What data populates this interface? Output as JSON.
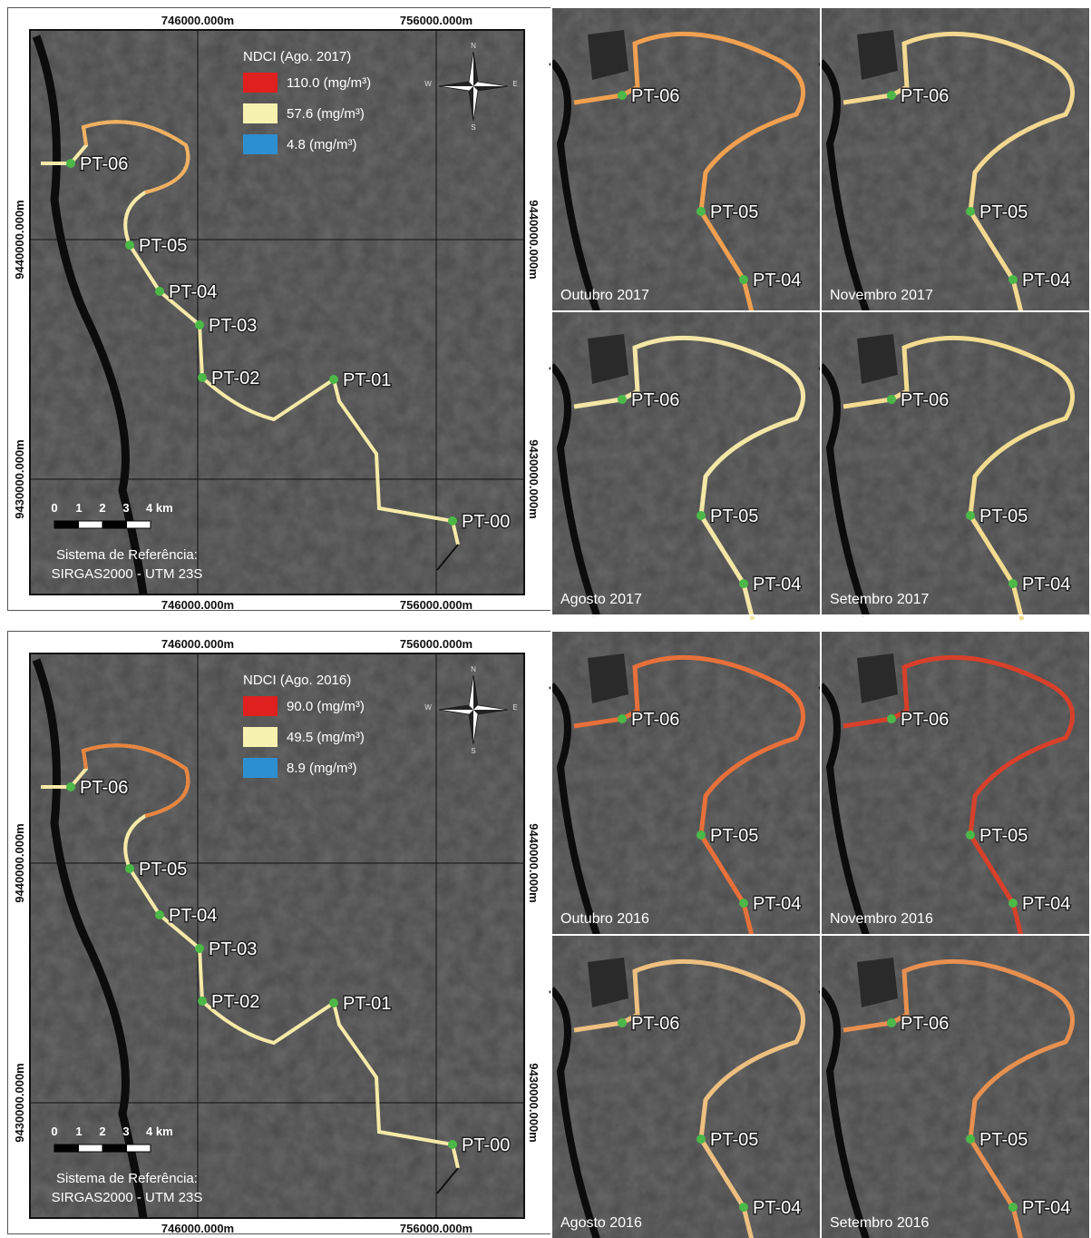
{
  "compass": [
    "N",
    "E",
    "S",
    "W"
  ],
  "panels": [
    {
      "legend": {
        "title": "NDCI (Ago. 2017)",
        "items": [
          {
            "label": "110.0 (mg/m³)",
            "color": "#e0201e"
          },
          {
            "label": "57.6 (mg/m³)",
            "color": "#f8f2b0"
          },
          {
            "label": "4.8 (mg/m³)",
            "color": "#2c8fd0"
          }
        ]
      },
      "coords": {
        "top": [
          "746000.000m",
          "756000.000m"
        ],
        "bottom": [
          "746000.000m",
          "756000.000m"
        ],
        "left": [
          "9440000.000m",
          "9430000.000m"
        ],
        "right": [
          "9440000.000m",
          "9430000.000m"
        ]
      },
      "points": [
        "PT-06",
        "PT-05",
        "PT-04",
        "PT-03",
        "PT-02",
        "PT-01",
        "PT-00"
      ],
      "scale": [
        "0",
        "1",
        "2",
        "3",
        "4 km"
      ],
      "reference": [
        "Sistema de Referência:",
        "SIRGAS2000 - UTM 23S"
      ],
      "insets": [
        {
          "caption": "Outubro 2017",
          "points": [
            "PT-06",
            "PT-05",
            "PT-04"
          ]
        },
        {
          "caption": "Novembro 2017",
          "points": [
            "PT-06",
            "PT-05",
            "PT-04"
          ]
        },
        {
          "caption": "Agosto 2017",
          "points": [
            "PT-06",
            "PT-05",
            "PT-04"
          ]
        },
        {
          "caption": "Setembro 2017",
          "points": [
            "PT-06",
            "PT-05",
            "PT-04"
          ]
        }
      ]
    },
    {
      "legend": {
        "title": "NDCI (Ago. 2016)",
        "items": [
          {
            "label": "90.0 (mg/m³)",
            "color": "#e0201e"
          },
          {
            "label": "49.5 (mg/m³)",
            "color": "#f8f2b0"
          },
          {
            "label": "8.9 (mg/m³)",
            "color": "#2c8fd0"
          }
        ]
      },
      "coords": {
        "top": [
          "746000.000m",
          "756000.000m"
        ],
        "bottom": [
          "746000.000m",
          "756000.000m"
        ],
        "left": [
          "9440000.000m",
          "9430000.000m"
        ],
        "right": [
          "9440000.000m",
          "9430000.000m"
        ]
      },
      "points": [
        "PT-06",
        "PT-05",
        "PT-04",
        "PT-03",
        "PT-02",
        "PT-01",
        "PT-00"
      ],
      "scale": [
        "0",
        "1",
        "2",
        "3",
        "4 km"
      ],
      "reference": [
        "Sistema de Referência:",
        "SIRGAS2000 - UTM 23S"
      ],
      "insets": [
        {
          "caption": "Outubro 2016",
          "points": [
            "PT-06",
            "PT-05",
            "PT-04"
          ]
        },
        {
          "caption": "Novembro 2016",
          "points": [
            "PT-06",
            "PT-05",
            "PT-04"
          ]
        },
        {
          "caption": "Agosto 2016",
          "points": [
            "PT-06",
            "PT-05",
            "PT-04"
          ]
        },
        {
          "caption": "Setembro 2016",
          "points": [
            "PT-06",
            "PT-05",
            "PT-04"
          ]
        }
      ]
    }
  ]
}
